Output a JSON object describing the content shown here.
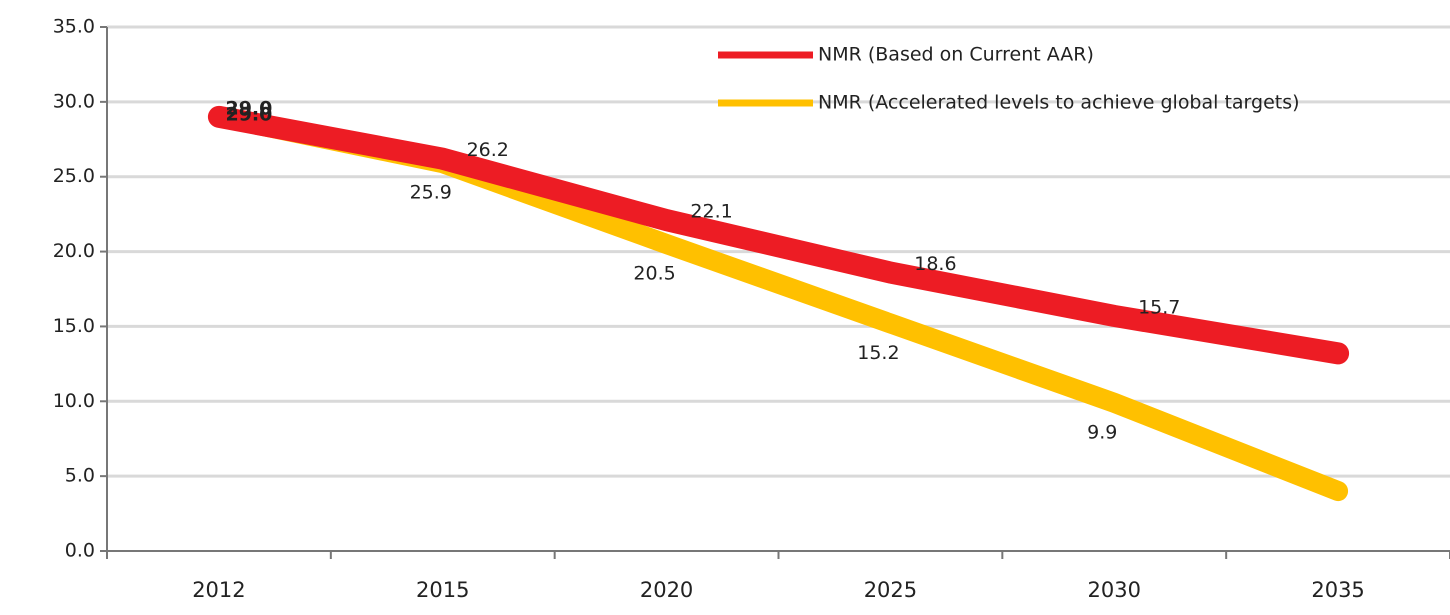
{
  "chart_data": {
    "type": "line",
    "categories": [
      "2012",
      "2015",
      "2020",
      "2025",
      "2030",
      "2035"
    ],
    "series": [
      {
        "name": "NMR (Based on Current AAR)",
        "color": "#ed1c24",
        "values": [
          29.0,
          26.2,
          22.1,
          18.6,
          15.7,
          13.2
        ],
        "value_labels": [
          "29.0",
          "26.2",
          "22.1",
          "18.6",
          "15.7",
          null
        ]
      },
      {
        "name": "NMR (Accelerated levels to achieve global targets)",
        "color": "#ffc000",
        "values": [
          29.0,
          25.9,
          20.5,
          15.2,
          9.9,
          4.0
        ],
        "value_labels": [
          "29.0",
          "25.9",
          "20.5",
          "15.2",
          "9.9",
          null
        ]
      }
    ],
    "ylim": [
      0,
      35
    ],
    "yticks": [
      {
        "value": 0,
        "label": "0.0"
      },
      {
        "value": 5,
        "label": "5.0"
      },
      {
        "value": 10,
        "label": "10.0"
      },
      {
        "value": 15,
        "label": "15.0"
      },
      {
        "value": 20,
        "label": "20.0"
      },
      {
        "value": 25,
        "label": "25.0"
      },
      {
        "value": 30,
        "label": "30.0"
      },
      {
        "value": 35,
        "label": "35.0"
      }
    ],
    "grid": true,
    "legend": "top-right"
  }
}
